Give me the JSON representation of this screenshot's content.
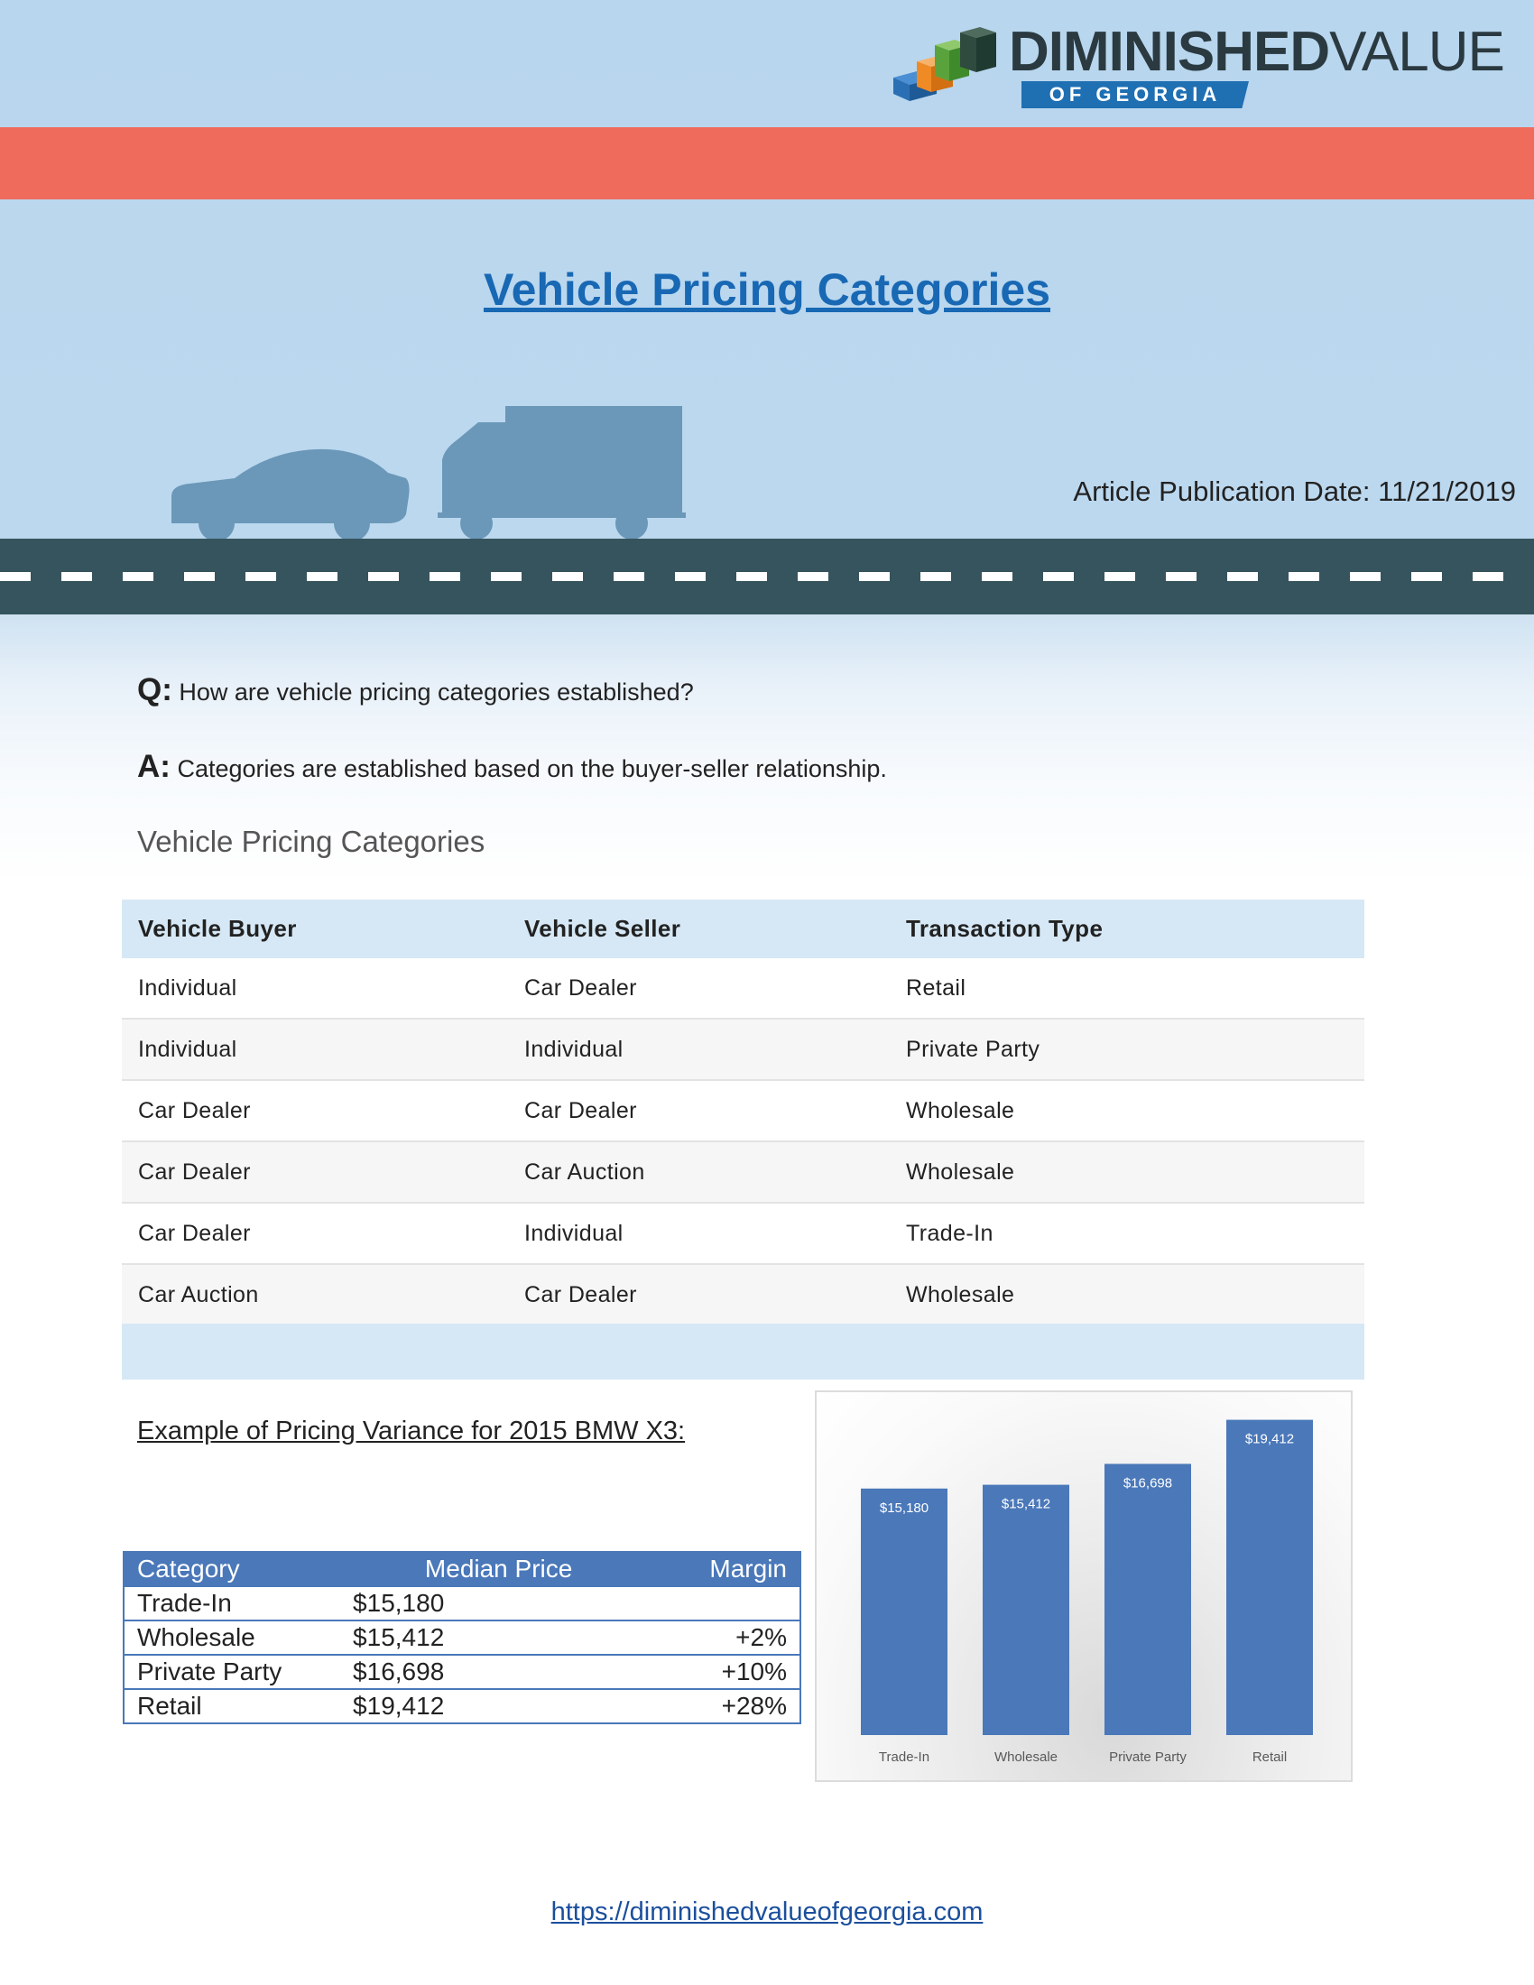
{
  "brand": {
    "name_bold": "DIMINISHED",
    "name_light": "VALUE",
    "sub": "OF GEORGIA",
    "colors": {
      "red_band": "#ef6b5c",
      "road": "#36545d",
      "accent_blue": "#1868b4",
      "table_blue": "#4a78b9"
    }
  },
  "header": {
    "title": "Vehicle Pricing Categories",
    "publication_date": "Article Publication Date: 11/21/2019"
  },
  "qa": {
    "q_label": "Q:",
    "q_text": "How are vehicle pricing categories established?",
    "a_label": "A:",
    "a_text": "Categories are established based on the buyer-seller relationship."
  },
  "categories": {
    "section_title": "Vehicle Pricing Categories",
    "headers": [
      "Vehicle Buyer",
      "Vehicle Seller",
      "Transaction Type"
    ],
    "rows": [
      [
        "Individual",
        "Car Dealer",
        "Retail"
      ],
      [
        "Individual",
        "Individual",
        "Private Party"
      ],
      [
        "Car Dealer",
        "Car Dealer",
        "Wholesale"
      ],
      [
        "Car Dealer",
        "Car Auction",
        "Wholesale"
      ],
      [
        "Car Dealer",
        "Individual",
        "Trade-In"
      ],
      [
        "Car Auction",
        "Car Dealer",
        "Wholesale"
      ]
    ]
  },
  "example": {
    "title": "Example of Pricing Variance for 2015 BMW X3:",
    "headers": [
      "Category",
      "Median Price",
      "Margin"
    ],
    "rows": [
      [
        "Trade-In",
        "$15,180",
        ""
      ],
      [
        "Wholesale",
        "$15,412",
        "+2%"
      ],
      [
        "Private Party",
        "$16,698",
        "+10%"
      ],
      [
        "Retail",
        "$19,412",
        "+28%"
      ]
    ]
  },
  "chart_data": {
    "type": "bar",
    "categories": [
      "Trade-In",
      "Wholesale",
      "Private Party",
      "Retail"
    ],
    "values": [
      15180,
      15412,
      16698,
      19412
    ],
    "data_labels": [
      "$15,180",
      "$15,412",
      "$16,698",
      "$19,412"
    ],
    "title": "",
    "xlabel": "",
    "ylabel": "",
    "ylim": [
      0,
      20000
    ],
    "grid": false,
    "legend": "none",
    "bar_color": "#4a78b9"
  },
  "footer": {
    "link": "https://diminishedvalueofgeorgia.com"
  }
}
